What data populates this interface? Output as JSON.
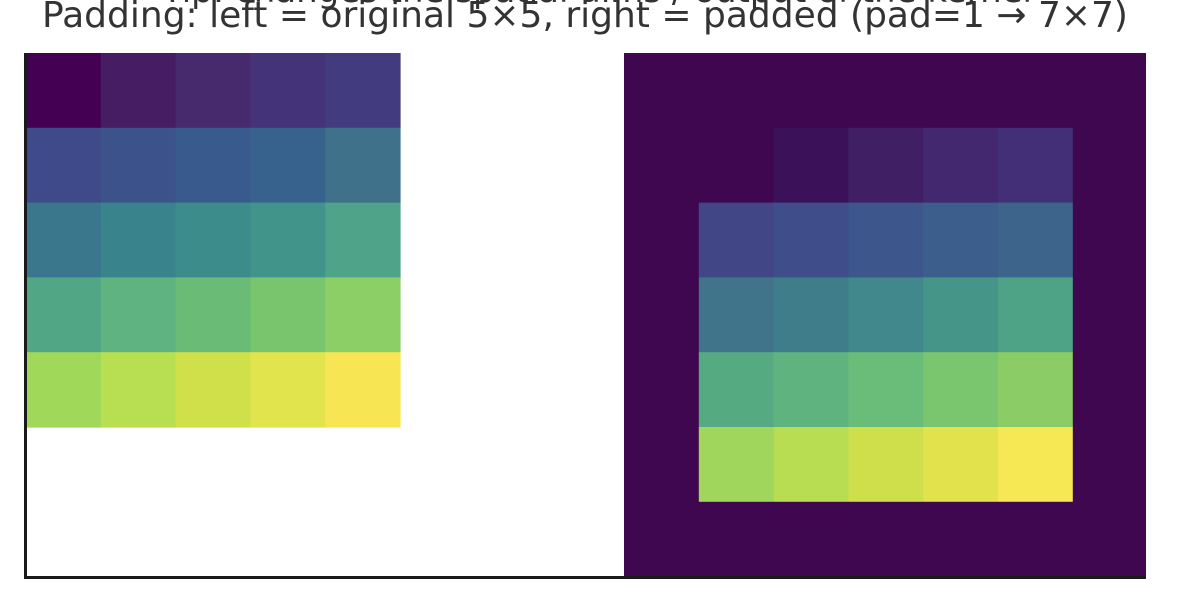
{
  "header": {
    "cut_text": "Tip: changes the spatial dims / output of the kernel",
    "title": "Padding: left = original 5×5, right = padded (pad=1 → 7×7)"
  },
  "grids": {
    "original": {
      "rows": 5,
      "cols": 5,
      "colors": [
        [
          "#440154",
          "#461d63",
          "#472a6d",
          "#45337a",
          "#433b80"
        ],
        [
          "#3e4a89",
          "#3b528b",
          "#395a8c",
          "#37628d",
          "#3f718a"
        ],
        [
          "#3a778c",
          "#38838c",
          "#3b8c8b",
          "#40948a",
          "#4ea389"
        ],
        [
          "#51a785",
          "#5eb381",
          "#6abb76",
          "#79c56e",
          "#8ccf66"
        ],
        [
          "#a0d95a",
          "#b8de51",
          "#cfe04b",
          "#e2e44d",
          "#f7e553"
        ]
      ]
    },
    "padded": {
      "rows": 7,
      "cols": 7,
      "pad_color": "#3e074f",
      "colors": [
        [
          "#3e074f",
          "#3e074f",
          "#3e074f",
          "#3e074f",
          "#3e074f",
          "#3e074f",
          "#3e074f"
        ],
        [
          "#3e074f",
          "#3e074f",
          "#3b125a",
          "#401f65",
          "#43286f",
          "#432f77",
          "#3e074f"
        ],
        [
          "#3e074f",
          "#404686",
          "#3f4d8a",
          "#3d568b",
          "#3b5e8c",
          "#3d658c",
          "#3e074f"
        ],
        [
          "#3e074f",
          "#40748a",
          "#3f7d8b",
          "#40888b",
          "#469589",
          "#4ea387",
          "#3e074f"
        ],
        [
          "#3e074f",
          "#56aa82",
          "#5fb37f",
          "#6abd79",
          "#7ac66f",
          "#8ccc66",
          "#3e074f"
        ],
        [
          "#3e074f",
          "#a0d65c",
          "#b8dd53",
          "#cfdf4b",
          "#e1e24c",
          "#f6e755",
          "#3e074f"
        ],
        [
          "#3e074f",
          "#3e074f",
          "#3e074f",
          "#3e074f",
          "#3e074f",
          "#3e074f",
          "#3e074f"
        ]
      ]
    }
  }
}
